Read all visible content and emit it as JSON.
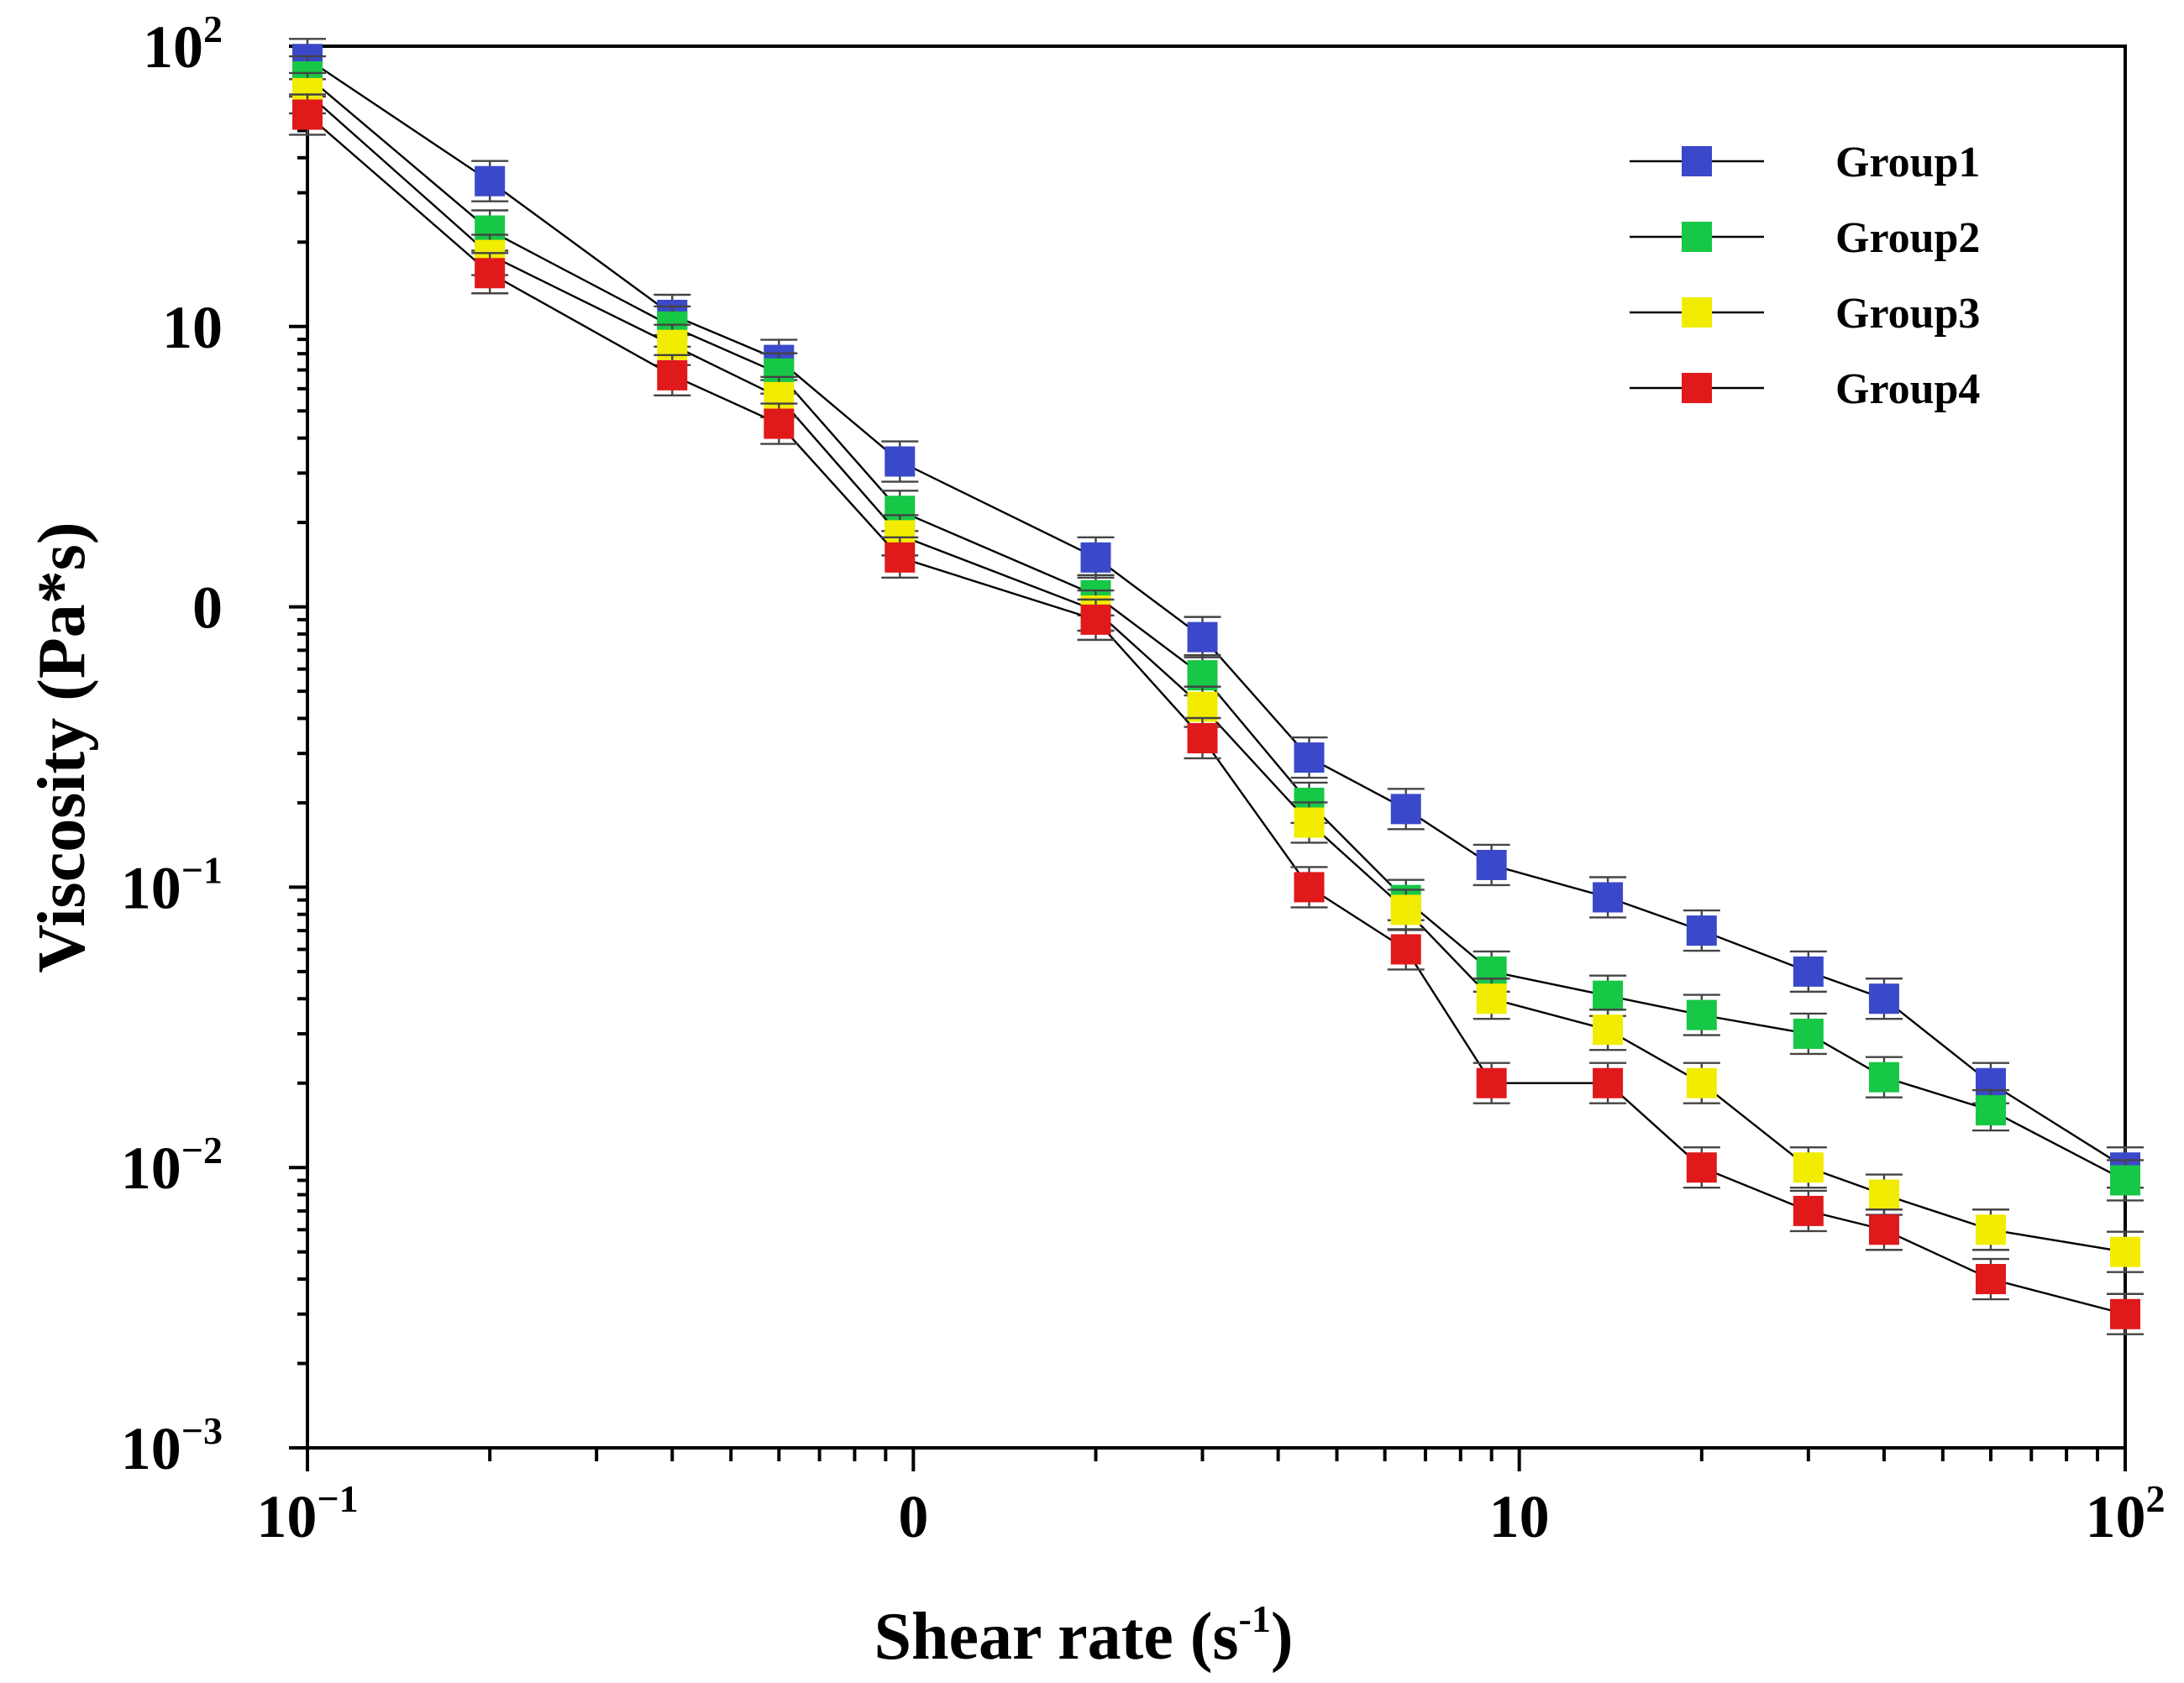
{
  "chart_data": {
    "type": "line",
    "title": "",
    "xlabel": "Shear rate (s",
    "xlabel_sup": "-1",
    "xlabel_end": ")",
    "ylabel": "Viscosity (Pa*s)",
    "x_scale": "log",
    "y_scale": "log",
    "xlim": [
      0.1,
      100
    ],
    "ylim": [
      0.001,
      100
    ],
    "x_ticks": [
      {
        "value": 0.1,
        "base": "10",
        "sup": "−1"
      },
      {
        "value": 1,
        "base": "0",
        "sup": ""
      },
      {
        "value": 10,
        "base": "10",
        "sup": ""
      },
      {
        "value": 100,
        "base": "10",
        "sup": "2"
      }
    ],
    "y_ticks": [
      {
        "value": 100,
        "base": "10",
        "sup": "2"
      },
      {
        "value": 10,
        "base": "10",
        "sup": ""
      },
      {
        "value": 1,
        "base": "0",
        "sup": ""
      },
      {
        "value": 0.1,
        "base": "10",
        "sup": "−1"
      },
      {
        "value": 0.01,
        "base": "10",
        "sup": "−2"
      },
      {
        "value": 0.001,
        "base": "10",
        "sup": "−3"
      }
    ],
    "grid": false,
    "legend_position": "top-right",
    "x": [
      0.1,
      0.2,
      0.4,
      0.6,
      0.95,
      2,
      3,
      4.5,
      6.5,
      9,
      14,
      20,
      30,
      40,
      60,
      100
    ],
    "series": [
      {
        "name": "Group1",
        "color": "#3a49c9",
        "values": [
          90,
          33,
          11,
          7.6,
          3.3,
          1.5,
          0.78,
          0.29,
          0.19,
          0.12,
          0.092,
          0.07,
          0.05,
          0.04,
          0.02,
          0.01
        ]
      },
      {
        "name": "Group2",
        "color": "#17c746",
        "values": [
          78,
          22,
          10,
          6.8,
          2.2,
          1.1,
          0.57,
          0.2,
          0.09,
          0.05,
          0.041,
          0.035,
          0.03,
          0.021,
          0.016,
          0.009
        ]
      },
      {
        "name": "Group3",
        "color": "#f2ec00",
        "values": [
          68,
          18,
          8.6,
          5.6,
          1.8,
          0.97,
          0.44,
          0.17,
          0.083,
          0.04,
          0.031,
          0.02,
          0.01,
          0.008,
          0.006,
          0.005
        ]
      },
      {
        "name": "Group4",
        "color": "#e0191b",
        "values": [
          57,
          15.5,
          6.7,
          4.5,
          1.5,
          0.9,
          0.34,
          0.1,
          0.06,
          0.02,
          0.02,
          0.01,
          0.007,
          0.006,
          0.004,
          0.003
        ]
      }
    ]
  }
}
